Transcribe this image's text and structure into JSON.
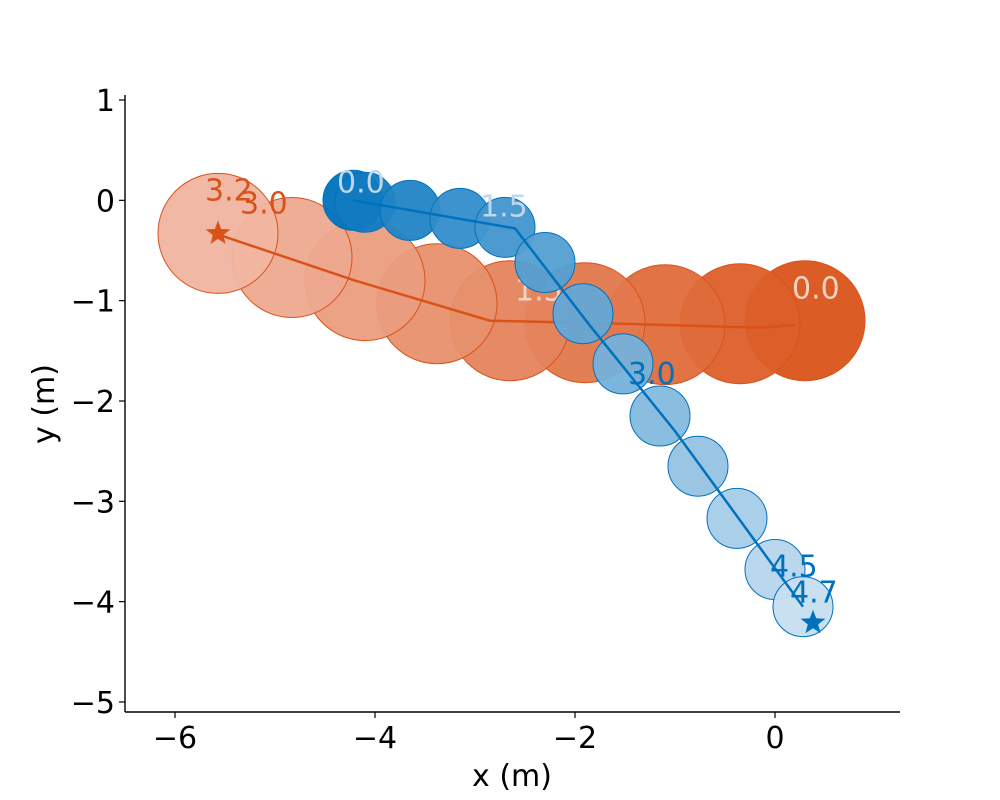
{
  "chart_data": {
    "type": "scatter",
    "title": "",
    "xlabel": "x (m)",
    "ylabel": "y (m)",
    "xlim": [
      -6.5,
      1.25
    ],
    "ylim": [
      -5.1,
      1.05
    ],
    "xticks": [
      -6,
      -4,
      -2,
      0
    ],
    "xtick_labels": [
      "−6",
      "−4",
      "−2",
      "0"
    ],
    "yticks": [
      1,
      0,
      -1,
      -2,
      -3,
      -4,
      -5
    ],
    "ytick_labels": [
      "1",
      "0",
      "−1",
      "−2",
      "−3",
      "−4",
      "−5"
    ],
    "grid": false,
    "legend": "none",
    "series": [
      {
        "color": "#d95319",
        "light_color": "#f0b5a0",
        "path": [
          [
            0.2,
            -1.24
          ],
          [
            -0.15,
            -1.27
          ],
          [
            -1.9,
            -1.22
          ],
          [
            -2.85,
            -1.2
          ],
          [
            -4.2,
            -0.8
          ],
          [
            -5.6,
            -0.33
          ]
        ],
        "circles": [
          {
            "x": 0.3,
            "y": -1.2,
            "r": 0.6
          },
          {
            "x": -0.35,
            "y": -1.23,
            "r": 0.6
          },
          {
            "x": -1.1,
            "y": -1.24,
            "r": 0.6
          },
          {
            "x": -1.9,
            "y": -1.22,
            "r": 0.6
          },
          {
            "x": -2.65,
            "y": -1.2,
            "r": 0.6
          },
          {
            "x": -3.38,
            "y": -1.03,
            "r": 0.6
          },
          {
            "x": -4.1,
            "y": -0.8,
            "r": 0.6
          },
          {
            "x": -4.83,
            "y": -0.57,
            "r": 0.6
          },
          {
            "x": -5.57,
            "y": -0.33,
            "r": 0.6
          }
        ],
        "labels": [
          {
            "text": "0.0",
            "x": 0.17,
            "y": -0.98,
            "color": "#f5d2c4"
          },
          {
            "text": "1.5",
            "x": -2.6,
            "y": -1.0,
            "color": "#f5d2c4"
          },
          {
            "text": "3.0",
            "x": -5.35,
            "y": -0.13,
            "color": "#d95319"
          },
          {
            "text": "3.2",
            "x": -5.7,
            "y": 0.0,
            "color": "#d95319"
          }
        ],
        "goal": {
          "x": -5.57,
          "y": -0.33
        }
      },
      {
        "color": "#0072bd",
        "light_color": "#c6def0",
        "path": [
          [
            -4.22,
            0.0
          ],
          [
            -2.6,
            -0.28
          ],
          [
            -1.85,
            -1.25
          ],
          [
            -1.0,
            -2.3
          ],
          [
            0.28,
            -4.05
          ]
        ],
        "circles": [
          {
            "x": -4.22,
            "y": 0.0,
            "r": 0.3
          },
          {
            "x": -4.1,
            "y": -0.02,
            "r": 0.3
          },
          {
            "x": -3.65,
            "y": -0.1,
            "r": 0.3
          },
          {
            "x": -3.15,
            "y": -0.18,
            "r": 0.3
          },
          {
            "x": -2.7,
            "y": -0.27,
            "r": 0.3
          },
          {
            "x": -2.3,
            "y": -0.62,
            "r": 0.3
          },
          {
            "x": -1.92,
            "y": -1.13,
            "r": 0.3
          },
          {
            "x": -1.52,
            "y": -1.63,
            "r": 0.3
          },
          {
            "x": -1.15,
            "y": -2.15,
            "r": 0.3
          },
          {
            "x": -0.77,
            "y": -2.65,
            "r": 0.3
          },
          {
            "x": -0.38,
            "y": -3.17,
            "r": 0.3
          },
          {
            "x": 0.0,
            "y": -3.68,
            "r": 0.3
          },
          {
            "x": 0.28,
            "y": -4.05,
            "r": 0.3
          }
        ],
        "labels": [
          {
            "text": "0.0",
            "x": -4.38,
            "y": 0.08,
            "color": "#bdd7ee"
          },
          {
            "text": "1.5",
            "x": -2.95,
            "y": -0.16,
            "color": "#bdd7ee"
          },
          {
            "text": "3.0",
            "x": -1.47,
            "y": -1.83,
            "color": "#0072bd"
          },
          {
            "text": "4.5",
            "x": -0.05,
            "y": -3.75,
            "color": "#0072bd"
          },
          {
            "text": "4.7",
            "x": 0.15,
            "y": -4.01,
            "color": "#0072bd"
          }
        ],
        "goal": {
          "x": 0.38,
          "y": -4.21
        }
      }
    ]
  }
}
